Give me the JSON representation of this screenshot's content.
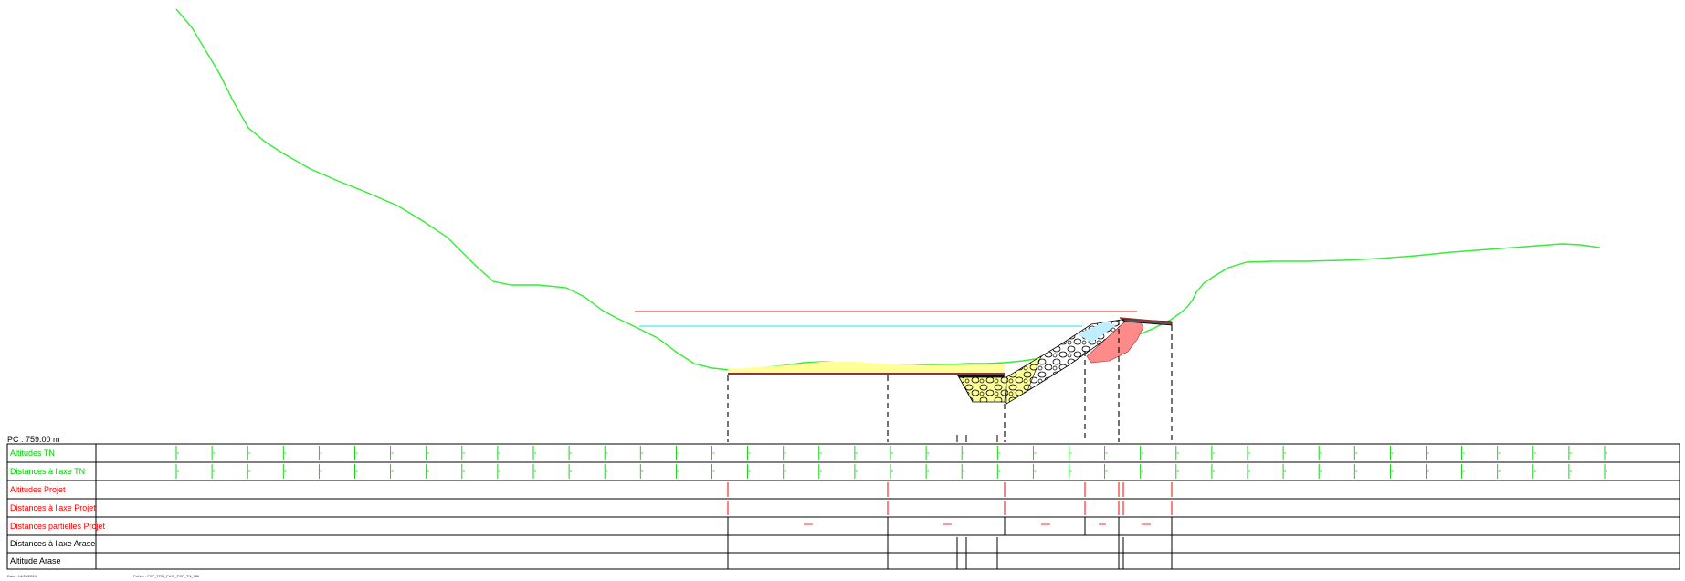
{
  "reference_plane": "PC : 759.00 m",
  "rows": [
    {
      "label": "Altitudes TN",
      "color": "#00cc00"
    },
    {
      "label": "Distances à l'axe TN",
      "color": "#00cc00"
    },
    {
      "label": "Altitudes Projet",
      "color": "#ff0000"
    },
    {
      "label": "Distances à l'axe Projet",
      "color": "#ff0000"
    },
    {
      "label": "Distances partielles Projet",
      "color": "#ff0000"
    },
    {
      "label": "Distances à l'axe Arase",
      "color": "#000000"
    },
    {
      "label": "Altitude Arase",
      "color": "#000000"
    }
  ],
  "colors": {
    "terrain_line": "#33ee33",
    "red_level": "#ff6666",
    "cyan_level": "#66eeee",
    "project_line": "#993333",
    "fill_yellow": "#ffff99",
    "fill_red": "#ff8a8a"
  },
  "footer": {
    "date": "Date : 14/05/2024",
    "file": "Fichier : PCF_TRN_PUIS_PCP_TN_386"
  }
}
